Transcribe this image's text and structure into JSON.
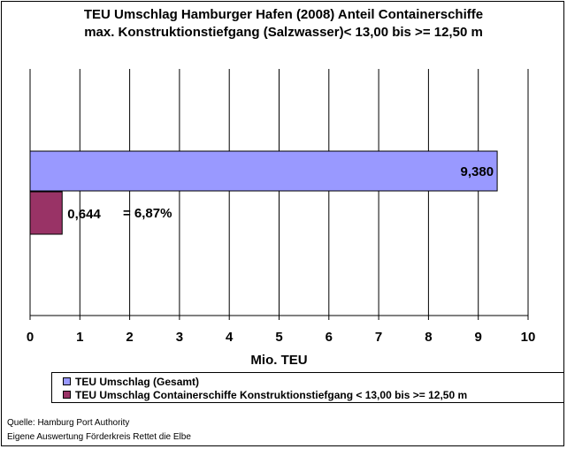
{
  "chart_data": {
    "type": "bar",
    "orientation": "horizontal",
    "title_lines": [
      "TEU Umschlag Hamburger Hafen (2008)  Anteil Containerschiffe",
      "max. Konstruktionstiefgang (Salzwasser)< 13,00 bis >= 12,50 m"
    ],
    "xlabel": "Mio. TEU",
    "ylabel": "",
    "xlim": [
      0,
      10
    ],
    "x_ticks": [
      "0",
      "1",
      "2",
      "3",
      "4",
      "5",
      "6",
      "7",
      "8",
      "9",
      "10"
    ],
    "grid": "vertical",
    "series": [
      {
        "name": "TEU Umschlag (Gesamt)",
        "value": 9.38,
        "label": "9,380",
        "color": "#9999ff"
      },
      {
        "name": "TEU Umschlag Containerschiffe Konstruktionstiefgang < 13,00 bis >= 12,50 m",
        "value": 0.644,
        "label": "0,644",
        "color": "#993366"
      }
    ],
    "annotation": "= 6,87%",
    "legend_position": "bottom"
  },
  "source_lines": [
    "Quelle: Hamburg Port Authority",
    "Eigene Auswertung Förderkreis Rettet die Elbe"
  ]
}
